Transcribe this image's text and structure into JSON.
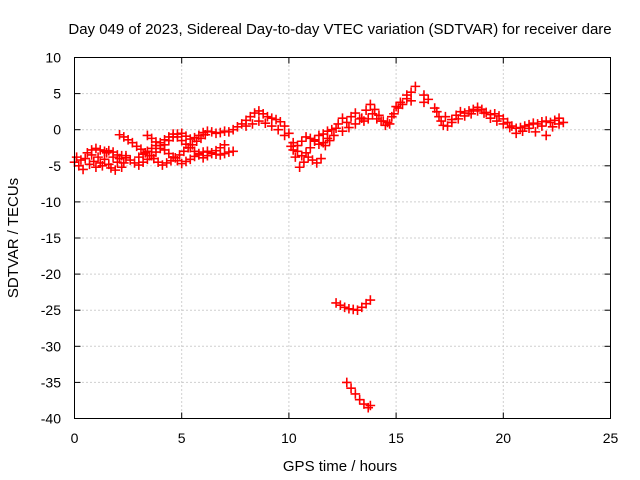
{
  "chart_data": {
    "type": "scatter",
    "title": "Day 049 of 2023, Sidereal Day-to-day VTEC variation (SDTVAR) for receiver dare",
    "xlabel": "GPS time / hours",
    "ylabel": "SDTVAR / TECUs",
    "xlim": [
      0,
      25
    ],
    "ylim": [
      -40,
      10
    ],
    "xticks": [
      0,
      5,
      10,
      15,
      20,
      25
    ],
    "yticks": [
      10,
      5,
      0,
      -5,
      -10,
      -15,
      -20,
      -25,
      -30,
      -35,
      -40
    ],
    "grid": true,
    "marker": "plus",
    "color": "#ff0000",
    "series": [
      {
        "name": "SDTVAR",
        "points": [
          [
            0.0,
            -4.5
          ],
          [
            0.1,
            -3.8
          ],
          [
            0.2,
            -5.0
          ],
          [
            0.3,
            -4.2
          ],
          [
            0.4,
            -5.5
          ],
          [
            0.5,
            -4.0
          ],
          [
            0.6,
            -3.2
          ],
          [
            0.7,
            -4.8
          ],
          [
            0.8,
            -3.5
          ],
          [
            0.9,
            -4.4
          ],
          [
            1.0,
            -5.2
          ],
          [
            1.1,
            -3.8
          ],
          [
            1.2,
            -4.6
          ],
          [
            1.3,
            -5.0
          ],
          [
            1.4,
            -4.1
          ],
          [
            1.5,
            -3.2
          ],
          [
            1.6,
            -4.8
          ],
          [
            1.7,
            -5.3
          ],
          [
            1.8,
            -3.8
          ],
          [
            1.9,
            -5.6
          ],
          [
            2.0,
            -4.5
          ],
          [
            2.1,
            -4.0
          ],
          [
            2.2,
            -5.2
          ],
          [
            2.3,
            -4.6
          ],
          [
            2.4,
            -3.6
          ],
          [
            0.8,
            -2.8
          ],
          [
            1.0,
            -2.6
          ],
          [
            1.2,
            -2.8
          ],
          [
            1.4,
            -3.0
          ],
          [
            1.6,
            -2.9
          ],
          [
            1.8,
            -3.1
          ],
          [
            2.0,
            -3.5
          ],
          [
            2.2,
            -3.6
          ],
          [
            2.4,
            -3.9
          ],
          [
            2.6,
            -4.2
          ],
          [
            2.8,
            -4.6
          ],
          [
            3.0,
            -4.9
          ],
          [
            3.2,
            -4.5
          ],
          [
            3.4,
            -4.1
          ],
          [
            3.6,
            -3.6
          ],
          [
            3.8,
            -3.1
          ],
          [
            4.0,
            -2.6
          ],
          [
            4.2,
            -2.1
          ],
          [
            4.4,
            -1.5
          ],
          [
            4.6,
            -1.0
          ],
          [
            4.8,
            -0.6
          ],
          [
            2.1,
            -0.7
          ],
          [
            2.3,
            -1.0
          ],
          [
            2.5,
            -1.4
          ],
          [
            2.7,
            -1.8
          ],
          [
            2.9,
            -2.3
          ],
          [
            3.1,
            -2.7
          ],
          [
            3.3,
            -3.2
          ],
          [
            3.5,
            -3.6
          ],
          [
            3.7,
            -4.0
          ],
          [
            3.9,
            -4.5
          ],
          [
            4.1,
            -4.9
          ],
          [
            4.3,
            -4.6
          ],
          [
            4.5,
            -4.3
          ],
          [
            4.7,
            -3.9
          ],
          [
            4.9,
            -3.5
          ],
          [
            5.1,
            -3.0
          ],
          [
            5.3,
            -2.5
          ],
          [
            5.5,
            -2.1
          ],
          [
            5.7,
            -1.6
          ],
          [
            5.9,
            -1.2
          ],
          [
            6.1,
            -0.7
          ],
          [
            3.0,
            -3.8
          ],
          [
            3.2,
            -3.4
          ],
          [
            3.4,
            -3.0
          ],
          [
            3.6,
            -2.6
          ],
          [
            3.8,
            -2.2
          ],
          [
            4.0,
            -1.8
          ],
          [
            4.2,
            -1.4
          ],
          [
            4.4,
            -1.0
          ],
          [
            4.6,
            -0.6
          ],
          [
            4.8,
            -1.0
          ],
          [
            5.0,
            -1.5
          ],
          [
            5.2,
            -2.0
          ],
          [
            5.4,
            -2.5
          ],
          [
            5.6,
            -3.0
          ],
          [
            5.8,
            -3.5
          ],
          [
            6.0,
            -3.9
          ],
          [
            6.2,
            -3.6
          ],
          [
            6.4,
            -3.3
          ],
          [
            6.6,
            -2.9
          ],
          [
            6.8,
            -2.5
          ],
          [
            7.0,
            -2.1
          ],
          [
            3.4,
            -0.8
          ],
          [
            3.6,
            -1.2
          ],
          [
            3.8,
            -1.7
          ],
          [
            4.0,
            -2.2
          ],
          [
            4.2,
            -2.8
          ],
          [
            4.4,
            -3.3
          ],
          [
            4.6,
            -3.8
          ],
          [
            4.8,
            -4.3
          ],
          [
            5.0,
            -4.7
          ],
          [
            5.2,
            -4.4
          ],
          [
            5.4,
            -4.1
          ],
          [
            5.6,
            -3.7
          ],
          [
            5.8,
            -3.3
          ],
          [
            6.0,
            -3.1
          ],
          [
            6.2,
            -3.0
          ],
          [
            6.4,
            -3.2
          ],
          [
            6.6,
            -3.4
          ],
          [
            6.8,
            -3.5
          ],
          [
            7.0,
            -3.3
          ],
          [
            7.2,
            -3.1
          ],
          [
            7.4,
            -3.0
          ],
          [
            5.0,
            -0.5
          ],
          [
            5.2,
            -0.9
          ],
          [
            5.4,
            -1.3
          ],
          [
            5.6,
            -1.1
          ],
          [
            5.8,
            -0.8
          ],
          [
            6.0,
            -0.4
          ],
          [
            6.2,
            -0.2
          ],
          [
            6.4,
            -0.3
          ],
          [
            6.6,
            -0.5
          ],
          [
            6.8,
            -0.4
          ],
          [
            7.0,
            -0.2
          ],
          [
            7.2,
            -0.3
          ],
          [
            7.4,
            0.0
          ],
          [
            7.6,
            0.4
          ],
          [
            7.8,
            0.8
          ],
          [
            8.0,
            1.3
          ],
          [
            8.2,
            1.8
          ],
          [
            8.4,
            2.3
          ],
          [
            8.6,
            2.6
          ],
          [
            8.8,
            2.2
          ],
          [
            9.0,
            1.8
          ],
          [
            9.2,
            1.6
          ],
          [
            9.4,
            1.4
          ],
          [
            9.6,
            1.1
          ],
          [
            9.8,
            0.5
          ],
          [
            10.0,
            -0.5
          ],
          [
            10.2,
            -1.8
          ],
          [
            10.4,
            -3.0
          ],
          [
            10.6,
            -3.6
          ],
          [
            10.8,
            -3.2
          ],
          [
            11.0,
            -2.5
          ],
          [
            11.2,
            -1.4
          ],
          [
            11.4,
            -0.8
          ],
          [
            11.6,
            -0.6
          ],
          [
            11.8,
            -0.2
          ],
          [
            12.0,
            0.0
          ],
          [
            12.2,
            0.2
          ],
          [
            8.0,
            0.5
          ],
          [
            8.3,
            0.8
          ],
          [
            8.6,
            1.2
          ],
          [
            8.9,
            0.9
          ],
          [
            9.2,
            0.5
          ],
          [
            9.5,
            0.0
          ],
          [
            9.8,
            -0.8
          ],
          [
            10.1,
            -2.3
          ],
          [
            10.3,
            -3.8
          ],
          [
            10.5,
            -5.2
          ],
          [
            10.7,
            -4.5
          ],
          [
            10.9,
            -3.8
          ],
          [
            11.1,
            -4.2
          ],
          [
            11.3,
            -4.6
          ],
          [
            11.5,
            -4.0
          ],
          [
            11.7,
            -2.2
          ],
          [
            11.9,
            -1.5
          ],
          [
            12.1,
            -0.8
          ],
          [
            10.2,
            -2.8
          ],
          [
            10.4,
            -2.2
          ],
          [
            10.6,
            -1.6
          ],
          [
            10.8,
            -1.0
          ],
          [
            11.0,
            -1.2
          ],
          [
            11.2,
            -1.6
          ],
          [
            11.4,
            -2.0
          ],
          [
            11.6,
            -1.8
          ],
          [
            11.8,
            -1.2
          ],
          [
            12.3,
            0.8
          ],
          [
            12.5,
            1.6
          ],
          [
            12.7,
            1.0
          ],
          [
            12.9,
            1.8
          ],
          [
            13.1,
            2.3
          ],
          [
            13.3,
            1.5
          ],
          [
            13.5,
            1.2
          ],
          [
            13.7,
            1.5
          ],
          [
            13.9,
            2.2
          ],
          [
            14.1,
            1.5
          ],
          [
            14.3,
            1.2
          ],
          [
            14.5,
            0.6
          ],
          [
            14.7,
            0.8
          ],
          [
            14.9,
            2.2
          ],
          [
            15.1,
            3.0
          ],
          [
            15.3,
            3.5
          ],
          [
            15.5,
            4.3
          ],
          [
            15.7,
            5.2
          ],
          [
            15.9,
            6.0
          ],
          [
            15.5,
            4.8
          ],
          [
            15.7,
            4.0
          ],
          [
            12.5,
            -0.2
          ],
          [
            12.8,
            0.3
          ],
          [
            13.1,
            0.8
          ],
          [
            13.4,
            1.6
          ],
          [
            13.6,
            2.7
          ],
          [
            13.8,
            3.5
          ],
          [
            14.0,
            2.8
          ],
          [
            14.2,
            2.0
          ],
          [
            14.4,
            1.2
          ],
          [
            14.6,
            1.0
          ],
          [
            14.8,
            1.8
          ],
          [
            15.0,
            3.2
          ],
          [
            15.2,
            3.8
          ],
          [
            16.3,
            4.8
          ],
          [
            16.5,
            4.2
          ],
          [
            16.3,
            3.8
          ],
          [
            16.8,
            3.0
          ],
          [
            16.9,
            2.5
          ],
          [
            17.0,
            1.8
          ],
          [
            17.1,
            1.2
          ],
          [
            17.2,
            0.6
          ],
          [
            17.4,
            0.5
          ],
          [
            17.6,
            1.4
          ],
          [
            17.8,
            2.0
          ],
          [
            18.0,
            2.5
          ],
          [
            18.2,
            2.3
          ],
          [
            18.4,
            2.6
          ],
          [
            18.6,
            2.8
          ],
          [
            18.8,
            3.1
          ],
          [
            19.0,
            2.8
          ],
          [
            19.2,
            2.4
          ],
          [
            19.4,
            2.1
          ],
          [
            19.6,
            2.2
          ],
          [
            19.8,
            1.9
          ],
          [
            20.0,
            1.5
          ],
          [
            20.2,
            1.0
          ],
          [
            20.4,
            0.5
          ],
          [
            20.6,
            0.2
          ],
          [
            20.8,
            0.3
          ],
          [
            21.0,
            0.5
          ],
          [
            21.2,
            0.7
          ],
          [
            21.4,
            0.9
          ],
          [
            21.6,
            0.8
          ],
          [
            21.8,
            1.1
          ],
          [
            22.0,
            1.2
          ],
          [
            22.2,
            1.0
          ],
          [
            22.4,
            1.3
          ],
          [
            22.6,
            1.6
          ],
          [
            22.8,
            1.0
          ],
          [
            17.3,
            1.8
          ],
          [
            17.6,
            1.0
          ],
          [
            17.9,
            1.5
          ],
          [
            18.2,
            1.9
          ],
          [
            18.5,
            2.2
          ],
          [
            18.8,
            2.6
          ],
          [
            19.1,
            2.3
          ],
          [
            19.4,
            1.6
          ],
          [
            19.7,
            1.2
          ],
          [
            20.0,
            0.8
          ],
          [
            20.3,
            0.3
          ],
          [
            20.6,
            -0.5
          ],
          [
            20.9,
            -0.2
          ],
          [
            21.2,
            0.2
          ],
          [
            21.5,
            -0.3
          ],
          [
            21.8,
            0.5
          ],
          [
            22.0,
            -0.8
          ],
          [
            22.3,
            0.4
          ],
          [
            22.6,
            0.8
          ],
          [
            12.2,
            -24.0
          ],
          [
            12.4,
            -24.3
          ],
          [
            12.6,
            -24.6
          ],
          [
            12.8,
            -24.8
          ],
          [
            13.0,
            -24.9
          ],
          [
            13.2,
            -25.0
          ],
          [
            13.4,
            -24.6
          ],
          [
            13.6,
            -24.1
          ],
          [
            13.8,
            -23.6
          ],
          [
            12.7,
            -35.0
          ],
          [
            12.9,
            -35.8
          ],
          [
            13.1,
            -36.6
          ],
          [
            13.3,
            -37.4
          ],
          [
            13.5,
            -38.0
          ],
          [
            13.7,
            -38.5
          ],
          [
            13.8,
            -38.2
          ]
        ]
      }
    ]
  }
}
